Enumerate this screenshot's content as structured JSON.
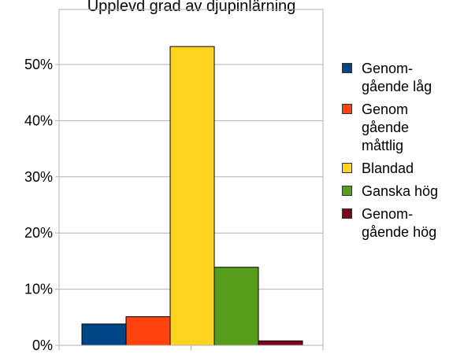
{
  "chart_data": {
    "type": "bar",
    "title": "Upplevd grad av djupinlärning",
    "categories": [
      "Genom-\ngående låg",
      "Genom\ngående\nmåttlig",
      "Blandad",
      "Ganska hög",
      "Genom-\ngående hög"
    ],
    "values": [
      3.8,
      5.1,
      53.2,
      13.9,
      0.8
    ],
    "colors": [
      "#004586",
      "#ff420e",
      "#ffd320",
      "#579d1c",
      "#7e0021"
    ],
    "ylim": [
      0,
      60
    ],
    "yticks": [
      "0%",
      "10%",
      "20%",
      "30%",
      "40%",
      "50%"
    ],
    "ytick_values": [
      0,
      10,
      20,
      30,
      40,
      50
    ],
    "grid": true,
    "legend_position": "right"
  }
}
